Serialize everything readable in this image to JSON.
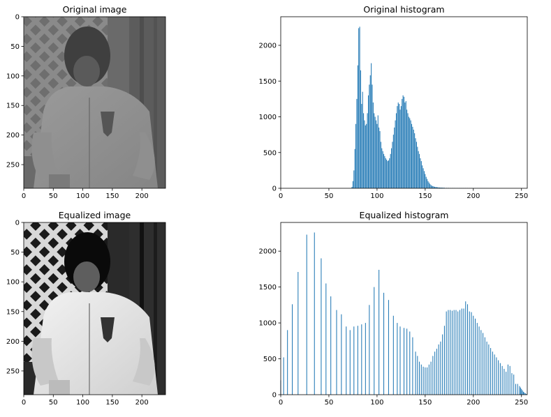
{
  "panels": [
    {
      "id": "orig-img",
      "title": "Original image"
    },
    {
      "id": "orig-hist",
      "title": "Original histogram"
    },
    {
      "id": "eq-img",
      "title": "Equalized image"
    },
    {
      "id": "eq-hist",
      "title": "Equalized histogram"
    }
  ],
  "colors": {
    "bar": "#1f77b4",
    "axis": "#000000"
  },
  "chart_data": [
    {
      "type": "image",
      "title": "Original image",
      "xlim": [
        0,
        240
      ],
      "ylim": [
        290,
        0
      ],
      "xticks": [
        0,
        50,
        100,
        150,
        200
      ],
      "yticks": [
        0,
        50,
        100,
        150,
        200,
        250
      ],
      "content": "grayscale photo of a child in a light jacket in front of a lattice fence (low contrast)"
    },
    {
      "type": "bar",
      "title": "Original histogram",
      "xlim": [
        0,
        256
      ],
      "ylim": [
        0,
        2400
      ],
      "xticks": [
        0,
        50,
        100,
        150,
        200,
        250
      ],
      "yticks": [
        0,
        500,
        1000,
        1500,
        2000
      ],
      "x": [
        74,
        75,
        76,
        77,
        78,
        79,
        80,
        81,
        82,
        83,
        84,
        85,
        86,
        87,
        88,
        89,
        90,
        91,
        92,
        93,
        94,
        95,
        96,
        97,
        98,
        99,
        100,
        101,
        102,
        103,
        104,
        105,
        106,
        107,
        108,
        109,
        110,
        111,
        112,
        113,
        114,
        115,
        116,
        117,
        118,
        119,
        120,
        121,
        122,
        123,
        124,
        125,
        126,
        127,
        128,
        129,
        130,
        131,
        132,
        133,
        134,
        135,
        136,
        137,
        138,
        139,
        140,
        141,
        142,
        143,
        144,
        145,
        146,
        147,
        148,
        149,
        150,
        151,
        152,
        153,
        154,
        155,
        156,
        157,
        158,
        159,
        160,
        161,
        162,
        163,
        164,
        165,
        166,
        167,
        168,
        169,
        170,
        172,
        174,
        176,
        178,
        180,
        182,
        184,
        186,
        188,
        190,
        192,
        194,
        196,
        198,
        200,
        202,
        204,
        206,
        208,
        210,
        212,
        214
      ],
      "values": [
        20,
        100,
        250,
        550,
        900,
        1250,
        1720,
        2240,
        2260,
        1650,
        1180,
        1350,
        1050,
        950,
        880,
        900,
        1050,
        1300,
        1450,
        1580,
        1750,
        1450,
        1200,
        1050,
        1000,
        950,
        900,
        1020,
        850,
        800,
        650,
        560,
        520,
        480,
        450,
        420,
        400,
        380,
        390,
        420,
        480,
        560,
        650,
        750,
        850,
        950,
        1050,
        1150,
        1200,
        1180,
        1100,
        1150,
        1250,
        1300,
        1280,
        1200,
        1220,
        1100,
        1050,
        1000,
        980,
        950,
        900,
        860,
        820,
        770,
        700,
        650,
        580,
        520,
        480,
        420,
        380,
        320,
        280,
        240,
        200,
        160,
        130,
        100,
        80,
        60,
        45,
        35,
        30,
        25,
        20,
        18,
        16,
        14,
        12,
        10,
        10,
        9,
        8,
        8,
        7,
        6,
        6,
        5,
        5,
        5,
        4,
        4,
        4,
        3,
        3,
        3,
        3,
        2,
        2,
        2,
        2,
        2,
        2,
        2,
        2,
        2,
        2
      ]
    },
    {
      "type": "image",
      "title": "Equalized image",
      "xlim": [
        0,
        240
      ],
      "ylim": [
        290,
        0
      ],
      "xticks": [
        0,
        50,
        100,
        150,
        200
      ],
      "yticks": [
        0,
        50,
        100,
        150,
        200,
        250
      ],
      "content": "same photo after histogram equalization (high contrast)"
    },
    {
      "type": "bar",
      "title": "Equalized histogram",
      "xlim": [
        0,
        256
      ],
      "ylim": [
        0,
        2400
      ],
      "xticks": [
        0,
        50,
        100,
        150,
        200,
        250
      ],
      "yticks": [
        0,
        500,
        1000,
        1500,
        2000
      ],
      "x": [
        0,
        3,
        7,
        12,
        18,
        27,
        35,
        42,
        47,
        52,
        58,
        63,
        68,
        72,
        76,
        80,
        84,
        88,
        92,
        97,
        102,
        107,
        112,
        117,
        121,
        124,
        128,
        131,
        134,
        137,
        140,
        142,
        144,
        146,
        148,
        150,
        152,
        154,
        156,
        158,
        160,
        162,
        164,
        166,
        168,
        170,
        172,
        174,
        176,
        178,
        180,
        182,
        184,
        186,
        188,
        190,
        192,
        194,
        196,
        198,
        200,
        202,
        204,
        206,
        208,
        210,
        212,
        214,
        216,
        218,
        220,
        222,
        224,
        226,
        228,
        230,
        232,
        234,
        236,
        238,
        240,
        242,
        244,
        246,
        248,
        249,
        250,
        251,
        252,
        253,
        254,
        255
      ],
      "values": [
        200,
        520,
        900,
        1260,
        1710,
        2230,
        2260,
        1900,
        1550,
        1370,
        1180,
        1120,
        950,
        900,
        950,
        960,
        980,
        1000,
        1250,
        1500,
        1740,
        1420,
        1320,
        1100,
        1000,
        950,
        930,
        920,
        880,
        800,
        600,
        540,
        460,
        420,
        390,
        380,
        380,
        420,
        460,
        540,
        600,
        640,
        700,
        740,
        840,
        960,
        1160,
        1180,
        1180,
        1170,
        1180,
        1180,
        1160,
        1180,
        1200,
        1200,
        1300,
        1260,
        1160,
        1150,
        1100,
        1060,
        1000,
        950,
        900,
        860,
        800,
        740,
        700,
        650,
        600,
        560,
        520,
        480,
        440,
        400,
        360,
        320,
        420,
        400,
        300,
        280,
        150,
        150,
        120,
        100,
        80,
        60,
        40,
        30,
        20,
        10
      ]
    }
  ]
}
